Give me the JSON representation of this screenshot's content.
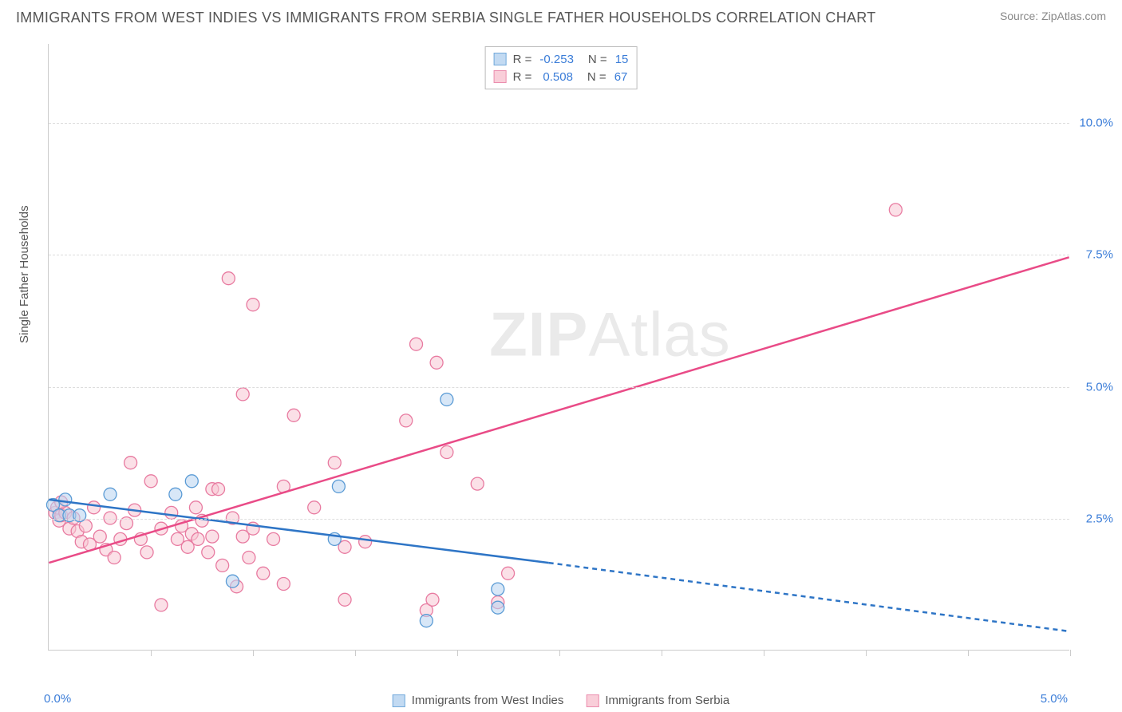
{
  "header": {
    "title": "IMMIGRANTS FROM WEST INDIES VS IMMIGRANTS FROM SERBIA SINGLE FATHER HOUSEHOLDS CORRELATION CHART",
    "source": "Source: ZipAtlas.com"
  },
  "watermark": {
    "zip": "ZIP",
    "atlas": "Atlas"
  },
  "chart": {
    "type": "scatter",
    "ylabel": "Single Father Households",
    "xlim": [
      0,
      5.0
    ],
    "ylim": [
      0,
      11.5
    ],
    "xticks": [
      0.5,
      1.0,
      1.5,
      2.0,
      2.5,
      3.0,
      3.5,
      4.0,
      4.5,
      5.0
    ],
    "yticks": [
      2.5,
      5.0,
      7.5,
      10.0
    ],
    "ytick_labels": [
      "2.5%",
      "5.0%",
      "7.5%",
      "10.0%"
    ],
    "xaxis_left_label": "0.0%",
    "xaxis_right_label": "5.0%",
    "grid_color": "#dddddd",
    "axis_color": "#cccccc",
    "tick_color": "#3b7dd8",
    "background_color": "#ffffff"
  },
  "series": {
    "blue": {
      "label": "Immigrants from West Indies",
      "R": "-0.253",
      "N": "15",
      "fill": "#b8d4f0",
      "stroke": "#5a9bd5",
      "line_color": "#2e75c6",
      "marker_radius": 8,
      "fill_opacity": 0.55,
      "trend": {
        "x1": 0,
        "y1": 2.85,
        "x2": 2.45,
        "y2": 1.65,
        "extrap_x2": 5.0,
        "extrap_y2": 0.35
      },
      "points": [
        [
          0.02,
          2.75
        ],
        [
          0.05,
          2.55
        ],
        [
          0.1,
          2.55
        ],
        [
          0.15,
          2.55
        ],
        [
          0.3,
          2.95
        ],
        [
          0.62,
          2.95
        ],
        [
          0.7,
          3.2
        ],
        [
          0.9,
          1.3
        ],
        [
          1.4,
          2.1
        ],
        [
          1.42,
          3.1
        ],
        [
          1.85,
          0.55
        ],
        [
          1.95,
          4.75
        ],
        [
          2.2,
          0.8
        ],
        [
          2.2,
          1.15
        ],
        [
          0.08,
          2.85
        ]
      ]
    },
    "pink": {
      "label": "Immigrants from Serbia",
      "R": "0.508",
      "N": "67",
      "fill": "#f8c6d3",
      "stroke": "#e87aa0",
      "line_color": "#e94b87",
      "marker_radius": 8,
      "fill_opacity": 0.55,
      "trend": {
        "x1": 0,
        "y1": 1.65,
        "x2": 5.0,
        "y2": 7.45
      },
      "points": [
        [
          0.03,
          2.6
        ],
        [
          0.04,
          2.7
        ],
        [
          0.05,
          2.45
        ],
        [
          0.06,
          2.55
        ],
        [
          0.08,
          2.6
        ],
        [
          0.1,
          2.3
        ],
        [
          0.12,
          2.5
        ],
        [
          0.14,
          2.25
        ],
        [
          0.16,
          2.05
        ],
        [
          0.18,
          2.35
        ],
        [
          0.2,
          2.0
        ],
        [
          0.22,
          2.7
        ],
        [
          0.25,
          2.15
        ],
        [
          0.28,
          1.9
        ],
        [
          0.3,
          2.5
        ],
        [
          0.32,
          1.75
        ],
        [
          0.35,
          2.1
        ],
        [
          0.38,
          2.4
        ],
        [
          0.4,
          3.55
        ],
        [
          0.42,
          2.65
        ],
        [
          0.45,
          2.1
        ],
        [
          0.48,
          1.85
        ],
        [
          0.5,
          3.2
        ],
        [
          0.55,
          2.3
        ],
        [
          0.55,
          0.85
        ],
        [
          0.6,
          2.6
        ],
        [
          0.63,
          2.1
        ],
        [
          0.65,
          2.35
        ],
        [
          0.68,
          1.95
        ],
        [
          0.7,
          2.2
        ],
        [
          0.72,
          2.7
        ],
        [
          0.73,
          2.1
        ],
        [
          0.75,
          2.45
        ],
        [
          0.78,
          1.85
        ],
        [
          0.8,
          2.15
        ],
        [
          0.8,
          3.05
        ],
        [
          0.83,
          3.05
        ],
        [
          0.85,
          1.6
        ],
        [
          0.88,
          7.05
        ],
        [
          0.9,
          2.5
        ],
        [
          0.92,
          1.2
        ],
        [
          0.95,
          2.15
        ],
        [
          0.95,
          4.85
        ],
        [
          0.98,
          1.75
        ],
        [
          1.0,
          2.3
        ],
        [
          1.0,
          6.55
        ],
        [
          1.05,
          1.45
        ],
        [
          1.1,
          2.1
        ],
        [
          1.15,
          3.1
        ],
        [
          1.15,
          1.25
        ],
        [
          1.2,
          4.45
        ],
        [
          1.3,
          2.7
        ],
        [
          1.4,
          3.55
        ],
        [
          1.45,
          0.95
        ],
        [
          1.45,
          1.95
        ],
        [
          1.55,
          2.05
        ],
        [
          1.75,
          4.35
        ],
        [
          1.8,
          5.8
        ],
        [
          1.85,
          0.75
        ],
        [
          1.88,
          0.95
        ],
        [
          1.9,
          5.45
        ],
        [
          1.95,
          3.75
        ],
        [
          2.1,
          3.15
        ],
        [
          2.2,
          0.9
        ],
        [
          2.25,
          1.45
        ],
        [
          4.15,
          8.35
        ],
        [
          0.06,
          2.8
        ]
      ]
    }
  },
  "legend_top": {
    "r_label": "R =",
    "n_label": "N ="
  }
}
